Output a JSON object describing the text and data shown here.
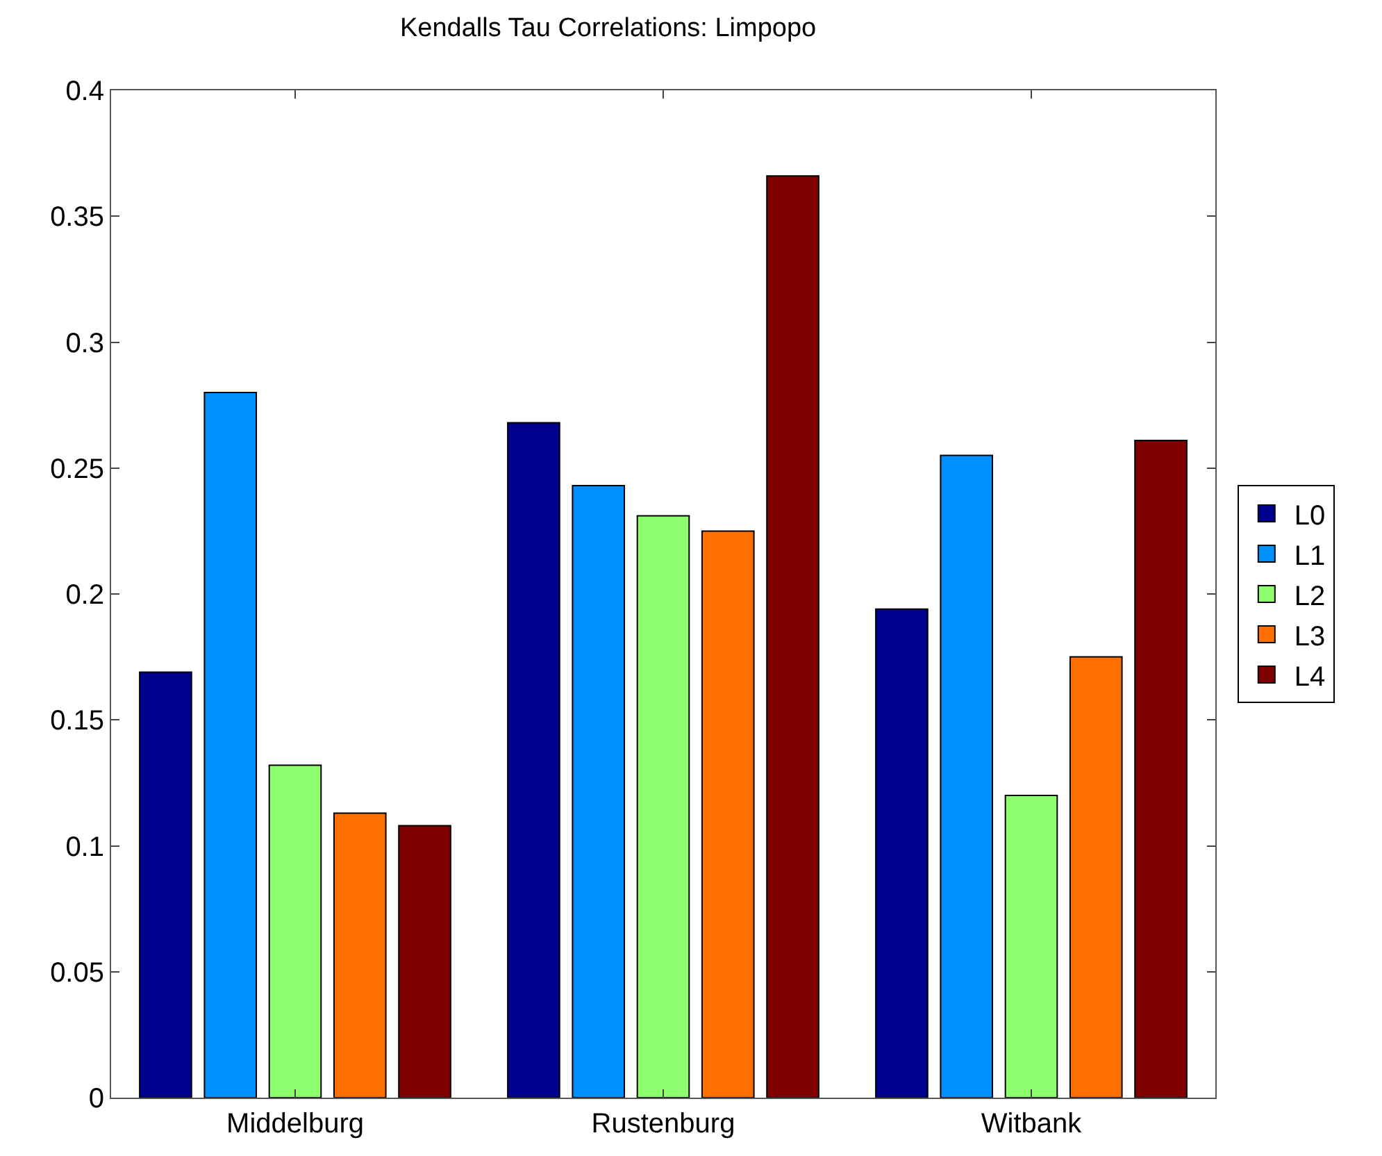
{
  "chart_data": {
    "type": "bar",
    "title": "Kendalls Tau Correlations: Limpopo",
    "categories": [
      "Middelburg",
      "Rustenburg",
      "Witbank"
    ],
    "series": [
      {
        "name": "L0",
        "color": "#00008f",
        "values": [
          0.169,
          0.268,
          0.194
        ]
      },
      {
        "name": "L1",
        "color": "#008fff",
        "values": [
          0.28,
          0.243,
          0.255
        ]
      },
      {
        "name": "L2",
        "color": "#8fff70",
        "values": [
          0.132,
          0.231,
          0.12
        ]
      },
      {
        "name": "L3",
        "color": "#ff7000",
        "values": [
          0.113,
          0.225,
          0.175
        ]
      },
      {
        "name": "L4",
        "color": "#800000",
        "values": [
          0.108,
          0.366,
          0.261
        ]
      }
    ],
    "ylim": [
      0,
      0.4
    ],
    "yticks": [
      0,
      0.05,
      0.1,
      0.15,
      0.2,
      0.25,
      0.3,
      0.35,
      0.4
    ],
    "grid": false,
    "legend": "right"
  }
}
